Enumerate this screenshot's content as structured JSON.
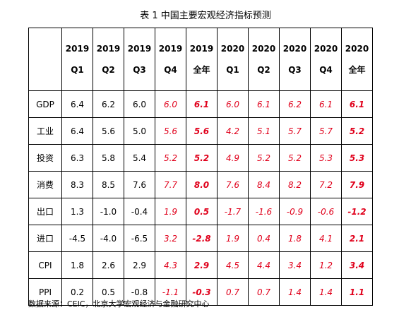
{
  "title": "表 1  中国主要宏观经济指标预测",
  "header": [
    {
      "year": "2019",
      "period": "Q1"
    },
    {
      "year": "2019",
      "period": "Q2"
    },
    {
      "year": "2019",
      "period": "Q3"
    },
    {
      "year": "2019",
      "period": "Q4"
    },
    {
      "year": "2019",
      "period": "全年"
    },
    {
      "year": "2020",
      "period": "Q1"
    },
    {
      "year": "2020",
      "period": "Q2"
    },
    {
      "year": "2020",
      "period": "Q3"
    },
    {
      "year": "2020",
      "period": "Q4"
    },
    {
      "year": "2020",
      "period": "全年"
    }
  ],
  "cell_styles": [
    "hist",
    "hist",
    "hist",
    "fc",
    "fc-bold",
    "fc",
    "fc",
    "fc",
    "fc",
    "fc-bold"
  ],
  "rows": [
    {
      "label": "GDP",
      "values": [
        "6.4",
        "6.2",
        "6.0",
        "6.0",
        "6.1",
        "6.0",
        "6.1",
        "6.2",
        "6.1",
        "6.1"
      ]
    },
    {
      "label": "工业",
      "values": [
        "6.4",
        "5.6",
        "5.0",
        "5.6",
        "5.6",
        "4.2",
        "5.1",
        "5.7",
        "5.7",
        "5.2"
      ]
    },
    {
      "label": "投资",
      "values": [
        "6.3",
        "5.8",
        "5.4",
        "5.2",
        "5.2",
        "4.9",
        "5.2",
        "5.2",
        "5.3",
        "5.3"
      ]
    },
    {
      "label": "消费",
      "values": [
        "8.3",
        "8.5",
        "7.6",
        "7.7",
        "8.0",
        "7.6",
        "8.4",
        "8.2",
        "7.2",
        "7.9"
      ]
    },
    {
      "label": "出口",
      "values": [
        "1.3",
        "-1.0",
        "-0.4",
        "1.9",
        "0.5",
        "-1.7",
        "-1.6",
        "-0.9",
        "-0.6",
        "-1.2"
      ]
    },
    {
      "label": "进口",
      "values": [
        "-4.5",
        "-4.0",
        "-6.5",
        "3.2",
        "-2.8",
        "1.9",
        "0.4",
        "1.8",
        "4.1",
        "2.1"
      ]
    },
    {
      "label": "CPI",
      "values": [
        "1.8",
        "2.6",
        "2.9",
        "4.3",
        "2.9",
        "4.5",
        "4.4",
        "3.4",
        "1.2",
        "3.4"
      ]
    },
    {
      "label": "PPI",
      "values": [
        "0.2",
        "0.5",
        "-0.8",
        "-1.1",
        "-0.3",
        "0.7",
        "0.7",
        "1.4",
        "1.4",
        "1.1"
      ]
    }
  ],
  "source": "数据来源：CEIC，北京大学宏观经济与金融研究中心"
}
